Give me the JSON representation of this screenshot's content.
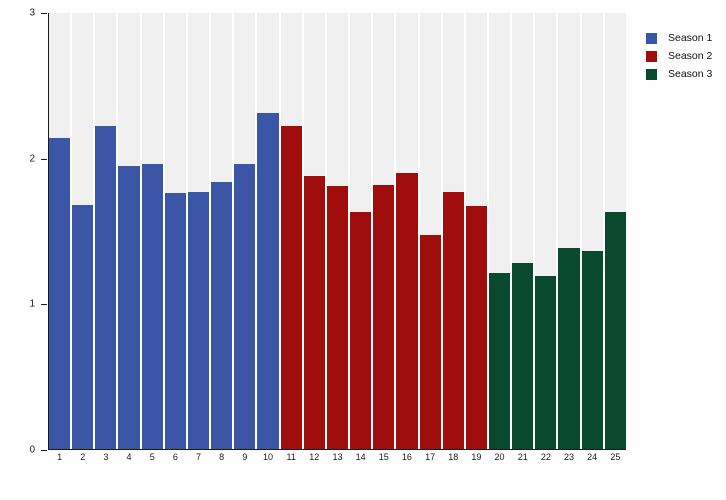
{
  "chart_data": {
    "type": "bar",
    "title": "",
    "xlabel": "",
    "ylabel": "",
    "ylim": [
      0,
      3
    ],
    "yticks": [
      0,
      1,
      2,
      3
    ],
    "grid": false,
    "legend_position": "top-right",
    "plot_background": "#F0F0F0",
    "axis_color": "#1a1a1a",
    "categories": [
      "1",
      "2",
      "3",
      "4",
      "5",
      "6",
      "7",
      "8",
      "9",
      "10",
      "11",
      "12",
      "13",
      "14",
      "15",
      "16",
      "17",
      "18",
      "19",
      "20",
      "21",
      "22",
      "23",
      "24",
      "25"
    ],
    "values": [
      2.14,
      1.68,
      2.22,
      1.95,
      1.96,
      1.76,
      1.77,
      1.84,
      1.96,
      2.31,
      2.22,
      1.88,
      1.81,
      1.63,
      1.82,
      1.9,
      1.47,
      1.77,
      1.67,
      1.21,
      1.28,
      1.19,
      1.38,
      1.36,
      1.63
    ],
    "series": [
      {
        "name": "Season 1",
        "color": "#3B56A6",
        "from": 1,
        "to": 10,
        "values": [
          2.14,
          1.68,
          2.22,
          1.95,
          1.96,
          1.76,
          1.77,
          1.84,
          1.96,
          2.31
        ]
      },
      {
        "name": "Season 2",
        "color": "#A00D0D",
        "from": 11,
        "to": 19,
        "values": [
          2.22,
          1.88,
          1.81,
          1.63,
          1.82,
          1.9,
          1.47,
          1.77,
          1.67
        ]
      },
      {
        "name": "Season 3",
        "color": "#094A2F",
        "from": 20,
        "to": 25,
        "values": [
          1.21,
          1.28,
          1.19,
          1.38,
          1.36,
          1.63
        ]
      }
    ]
  }
}
